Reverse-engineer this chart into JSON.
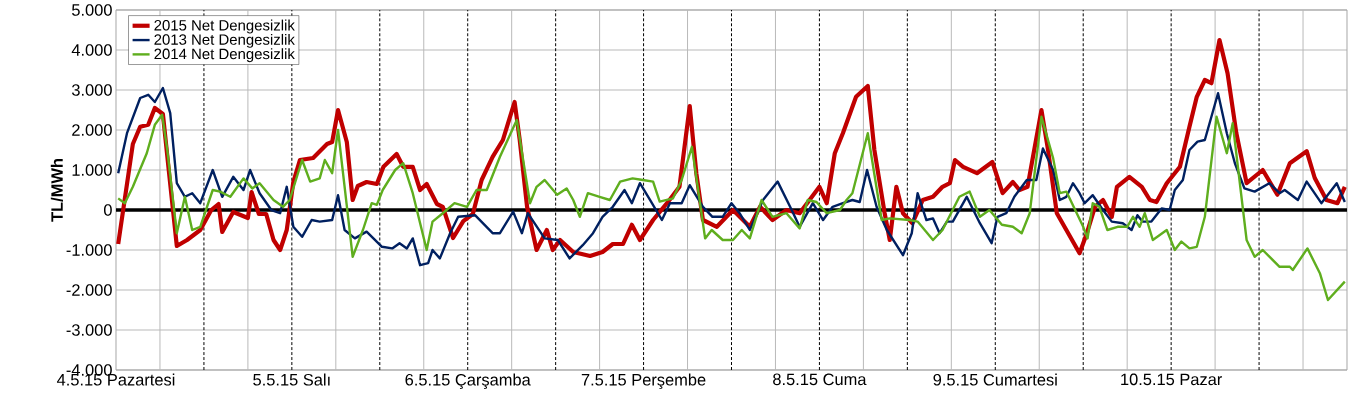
{
  "chart_data": {
    "type": "line",
    "ylabel": "TL/MWh",
    "xlim": [
      "2015-05-04T00:00",
      "2015-05-11T00:00"
    ],
    "ylim": [
      -4000,
      5000
    ],
    "xticks": [
      {
        "value": "2015-05-04T00:00",
        "label": "4.5.15 Pazartesi"
      },
      {
        "value": "2015-05-04T06:00",
        "label": null
      },
      {
        "value": "2015-05-04T12:00",
        "label": null
      },
      {
        "value": "2015-05-04T18:00",
        "label": null
      },
      {
        "value": "2015-05-05T00:00",
        "label": "5.5.15 Salı"
      },
      {
        "value": "2015-05-05T06:00",
        "label": null
      },
      {
        "value": "2015-05-05T12:00",
        "label": null
      },
      {
        "value": "2015-05-05T18:00",
        "label": null
      },
      {
        "value": "2015-05-06T00:00",
        "label": "6.5.15 Çarşamba"
      },
      {
        "value": "2015-05-06T06:00",
        "label": null
      },
      {
        "value": "2015-05-06T12:00",
        "label": null
      },
      {
        "value": "2015-05-06T18:00",
        "label": null
      },
      {
        "value": "2015-05-07T00:00",
        "label": "7.5.15 Perşembe"
      },
      {
        "value": "2015-05-07T06:00",
        "label": null
      },
      {
        "value": "2015-05-07T12:00",
        "label": null
      },
      {
        "value": "2015-05-07T18:00",
        "label": null
      },
      {
        "value": "2015-05-08T00:00",
        "label": "8.5.15 Cuma"
      },
      {
        "value": "2015-05-08T06:00",
        "label": null
      },
      {
        "value": "2015-05-08T12:00",
        "label": null
      },
      {
        "value": "2015-05-08T18:00",
        "label": null
      },
      {
        "value": "2015-05-09T00:00",
        "label": "9.5.15 Cumartesi"
      },
      {
        "value": "2015-05-09T06:00",
        "label": null
      },
      {
        "value": "2015-05-09T12:00",
        "label": null
      },
      {
        "value": "2015-05-09T18:00",
        "label": null
      },
      {
        "value": "2015-05-10T00:00",
        "label": "10.5.15 Pazar"
      },
      {
        "value": "2015-05-10T06:00",
        "label": null
      },
      {
        "value": "2015-05-10T12:00",
        "label": null
      },
      {
        "value": "2015-05-10T18:00",
        "label": null
      },
      {
        "value": "2015-05-11T00:00",
        "label": null
      }
    ],
    "yticks": [
      {
        "value": -4000,
        "label": "-4.000"
      },
      {
        "value": -3000,
        "label": "-3.000"
      },
      {
        "value": -2000,
        "label": "-2.000"
      },
      {
        "value": -1000,
        "label": "-1.000"
      },
      0,
      {
        "value": 1000,
        "label": "1.000"
      },
      {
        "value": 2000,
        "label": "2.000"
      },
      {
        "value": 3000,
        "label": "3.000"
      },
      {
        "value": 4000,
        "label": "4.000"
      },
      {
        "value": 5000,
        "label": "5.000"
      }
    ],
    "grid": true,
    "legend": "top left",
    "ref_lines": [
      {
        "axis": "y",
        "value": 0,
        "color": "#000000",
        "line_style": "solid"
      }
    ],
    "series": [
      {
        "name": "2015  Net Dengesizlik",
        "color": "#c00000",
        "x": [
          "2015-05-04T00:18",
          "2015-05-04T02:18",
          "2015-05-04T03:18",
          "2015-05-04T04:24",
          "2015-05-04T05:18",
          "2015-05-04T06:24",
          "2015-05-04T07:12",
          "2015-05-04T08:18",
          "2015-05-04T09:42",
          "2015-05-04T11:30",
          "2015-05-04T13:00",
          "2015-05-04T14:00",
          "2015-05-04T14:30",
          "2015-05-04T16:00",
          "2015-05-04T18:00",
          "2015-05-04T18:30",
          "2015-05-04T19:30",
          "2015-05-04T20:30",
          "2015-05-04T21:30",
          "2015-05-04T22:24",
          "2015-05-04T23:18",
          "2015-05-05T00:12",
          "2015-05-05T01:06",
          "2015-05-05T02:54",
          "2015-05-05T04:48",
          "2015-05-05T05:30",
          "2015-05-05T06:18",
          "2015-05-05T07:30",
          "2015-05-05T08:18",
          "2015-05-05T09:00",
          "2015-05-05T10:12",
          "2015-05-05T11:36",
          "2015-05-05T12:30",
          "2015-05-05T14:18",
          "2015-05-05T15:12",
          "2015-05-05T16:30",
          "2015-05-05T17:30",
          "2015-05-05T18:24",
          "2015-05-05T19:48",
          "2015-05-05T20:36",
          "2015-05-05T22:00",
          "2015-05-05T23:24",
          "2015-05-06T00:42",
          "2015-05-06T01:54",
          "2015-05-06T03:24",
          "2015-05-06T04:48",
          "2015-05-06T06:24",
          "2015-05-06T07:06",
          "2015-05-06T08:06",
          "2015-05-06T09:24",
          "2015-05-06T10:48",
          "2015-05-06T11:36",
          "2015-05-06T12:36",
          "2015-05-06T14:24",
          "2015-05-06T16:42",
          "2015-05-06T18:24",
          "2015-05-06T19:48",
          "2015-05-06T21:12",
          "2015-05-06T22:24",
          "2015-05-06T23:30",
          "2015-05-07T01:18",
          "2015-05-07T03:12",
          "2015-05-07T04:54",
          "2015-05-07T06:18",
          "2015-05-07T07:12",
          "2015-05-07T08:06",
          "2015-05-07T10:00",
          "2015-05-07T12:12",
          "2015-05-07T14:30",
          "2015-05-07T15:54",
          "2015-05-07T17:36",
          "2015-05-07T19:30",
          "2015-05-07T21:18",
          "2015-05-08T00:00",
          "2015-05-08T01:00",
          "2015-05-08T02:06",
          "2015-05-08T03:12",
          "2015-05-08T05:00",
          "2015-05-08T06:36",
          "2015-05-08T07:30",
          "2015-05-08T08:54",
          "2015-05-08T09:36",
          "2015-05-08T10:30",
          "2015-05-08T11:24",
          "2015-05-08T12:42",
          "2015-05-08T14:06",
          "2015-05-08T15:30",
          "2015-05-08T16:48",
          "2015-05-08T17:48",
          "2015-05-08T18:30",
          "2015-05-08T19:36",
          "2015-05-08T21:30",
          "2015-05-08T23:36",
          "2015-05-09T01:00",
          "2015-05-09T02:24",
          "2015-05-09T03:18",
          "2015-05-09T04:24",
          "2015-05-09T06:18",
          "2015-05-09T07:12",
          "2015-05-09T08:24",
          "2015-05-09T09:42",
          "2015-05-09T11:30",
          "2015-05-09T12:30",
          "2015-05-09T13:36",
          "2015-05-09T14:42",
          "2015-05-09T15:54",
          "2015-05-09T16:36",
          "2015-05-09T18:18",
          "2015-05-09T20:00",
          "2015-05-09T21:06",
          "2015-05-09T22:00",
          "2015-05-09T23:24",
          "2015-05-10T01:12",
          "2015-05-10T02:30",
          "2015-05-10T03:30",
          "2015-05-10T04:36",
          "2015-05-10T05:30",
          "2015-05-10T06:36",
          "2015-05-10T07:42",
          "2015-05-10T08:54",
          "2015-05-10T10:18",
          "2015-05-10T12:30",
          "2015-05-10T14:30",
          "2015-05-10T16:12",
          "2015-05-10T18:30",
          "2015-05-10T19:36",
          "2015-05-10T21:12",
          "2015-05-10T22:42",
          "2015-05-10T23:42"
        ],
        "values": [
          -850,
          1650,
          2080,
          2130,
          2550,
          2400,
          1000,
          -900,
          -750,
          -500,
          0,
          150,
          -550,
          -50,
          -200,
          450,
          -100,
          -100,
          -750,
          -1000,
          -500,
          700,
          1250,
          1300,
          1650,
          1700,
          2500,
          1700,
          250,
          600,
          700,
          650,
          1080,
          1400,
          1080,
          1080,
          500,
          650,
          150,
          80,
          -700,
          -280,
          -100,
          750,
          1330,
          1750,
          2700,
          1750,
          80,
          -1000,
          -500,
          -1000,
          -750,
          -1050,
          -1150,
          -1050,
          -850,
          -850,
          -370,
          -750,
          -250,
          170,
          580,
          2600,
          920,
          -250,
          -420,
          0,
          -420,
          80,
          -250,
          0,
          -80,
          580,
          170,
          1420,
          1920,
          2830,
          3100,
          1500,
          -80,
          -750,
          580,
          -80,
          -330,
          250,
          330,
          580,
          670,
          1250,
          1080,
          920,
          1200,
          420,
          700,
          500,
          580,
          2500,
          1500,
          -80,
          -500,
          -1080,
          -580,
          80,
          250,
          -170,
          580,
          830,
          580,
          250,
          200,
          670,
          1080,
          2080,
          2830,
          3250,
          3170,
          4250,
          3420,
          1920,
          670,
          1000,
          380,
          1170,
          1470,
          800,
          250,
          170,
          580
        ]
      },
      {
        "name": "2013  Net Dengesizlik",
        "color": "#002060",
        "x": [
          "2015-05-04T00:18",
          "2015-05-04T01:30",
          "2015-05-04T03:18",
          "2015-05-04T04:24",
          "2015-05-04T05:18",
          "2015-05-04T06:24",
          "2015-05-04T07:24",
          "2015-05-04T08:18",
          "2015-05-04T09:24",
          "2015-05-04T10:24",
          "2015-05-04T11:30",
          "2015-05-04T13:12",
          "2015-05-04T14:30",
          "2015-05-04T16:00",
          "2015-05-04T17:24",
          "2015-05-04T18:18",
          "2015-05-04T19:36",
          "2015-05-04T21:12",
          "2015-05-04T22:24",
          "2015-05-04T23:18",
          "2015-05-05T00:12",
          "2015-05-05T01:24",
          "2015-05-05T02:42",
          "2015-05-05T03:48",
          "2015-05-05T05:30",
          "2015-05-05T06:18",
          "2015-05-05T07:12",
          "2015-05-05T08:36",
          "2015-05-05T10:12",
          "2015-05-05T12:18",
          "2015-05-05T13:42",
          "2015-05-05T14:42",
          "2015-05-05T15:42",
          "2015-05-05T16:30",
          "2015-05-05T17:30",
          "2015-05-05T18:36",
          "2015-05-05T19:12",
          "2015-05-05T20:12",
          "2015-05-05T21:36",
          "2015-05-05T22:42",
          "2015-05-06T01:00",
          "2015-05-06T03:24",
          "2015-05-06T04:24",
          "2015-05-06T06:12",
          "2015-05-06T07:24",
          "2015-05-06T08:12",
          "2015-05-06T10:30",
          "2015-05-06T12:18",
          "2015-05-06T13:54",
          "2015-05-06T15:42",
          "2015-05-06T17:06",
          "2015-05-06T18:24",
          "2015-05-06T19:48",
          "2015-05-06T21:24",
          "2015-05-06T22:24",
          "2015-05-06T23:30",
          "2015-05-07T00:54",
          "2015-05-07T02:30",
          "2015-05-07T03:36",
          "2015-05-07T05:12",
          "2015-05-07T06:18",
          "2015-05-07T08:06",
          "2015-05-07T09:24",
          "2015-05-07T10:48",
          "2015-05-07T12:00",
          "2015-05-07T13:06",
          "2015-05-07T14:30",
          "2015-05-07T16:18",
          "2015-05-07T18:18",
          "2015-05-07T20:00",
          "2015-05-07T21:18",
          "2015-05-07T23:06",
          "2015-05-08T00:30",
          "2015-05-08T01:48",
          "2015-05-08T03:12",
          "2015-05-08T04:30",
          "2015-05-08T05:30",
          "2015-05-08T06:30",
          "2015-05-08T07:48",
          "2015-05-08T09:12",
          "2015-05-08T11:24",
          "2015-05-08T12:36",
          "2015-05-08T13:24",
          "2015-05-08T14:36",
          "2015-05-08T15:30",
          "2015-05-08T16:24",
          "2015-05-08T17:24",
          "2015-05-08T18:12",
          "2015-05-08T20:06",
          "2015-05-08T21:54",
          "2015-05-08T23:30",
          "2015-05-09T00:18",
          "2015-05-09T01:30",
          "2015-05-09T02:36",
          "2015-05-09T04:18",
          "2015-05-09T05:36",
          "2015-05-09T06:30",
          "2015-05-09T07:54",
          "2015-05-09T08:48",
          "2015-05-09T09:42",
          "2015-05-09T10:36",
          "2015-05-09T11:30",
          "2015-05-09T12:12",
          "2015-05-09T13:18",
          "2015-05-09T14:42",
          "2015-05-09T15:54",
          "2015-05-09T17:24",
          "2015-05-09T18:36",
          "2015-05-09T19:24",
          "2015-05-09T20:06",
          "2015-05-09T21:18",
          "2015-05-09T22:42",
          "2015-05-09T23:48",
          "2015-05-10T00:30",
          "2015-05-10T01:36",
          "2015-05-10T02:30",
          "2015-05-10T03:36",
          "2015-05-10T04:36",
          "2015-05-10T06:24",
          "2015-05-10T07:36",
          "2015-05-10T08:42",
          "2015-05-10T10:00",
          "2015-05-10T11:24",
          "2015-05-10T13:24",
          "2015-05-10T14:48",
          "2015-05-10T15:30",
          "2015-05-10T17:18",
          "2015-05-10T18:30",
          "2015-05-10T20:30",
          "2015-05-10T22:36",
          "2015-05-10T23:42"
        ],
        "values": [
          920,
          1920,
          2800,
          2880,
          2700,
          3050,
          2420,
          670,
          330,
          420,
          170,
          1000,
          330,
          830,
          500,
          1000,
          420,
          0,
          -80,
          580,
          -420,
          -670,
          -250,
          -290,
          -250,
          370,
          -500,
          -710,
          -540,
          -920,
          -960,
          -830,
          -960,
          -710,
          -1380,
          -1330,
          -1000,
          -1210,
          -580,
          -170,
          -130,
          -580,
          -580,
          -40,
          -580,
          -80,
          -710,
          -750,
          -1210,
          -880,
          -580,
          -170,
          80,
          500,
          170,
          670,
          250,
          -250,
          170,
          170,
          620,
          80,
          -170,
          -170,
          170,
          -80,
          -500,
          250,
          710,
          80,
          -420,
          170,
          -250,
          80,
          170,
          250,
          200,
          1000,
          80,
          -500,
          -1130,
          -580,
          420,
          -250,
          -210,
          -580,
          -290,
          -290,
          330,
          -330,
          -830,
          -170,
          -80,
          330,
          750,
          750,
          1540,
          1000,
          250,
          330,
          670,
          420,
          170,
          370,
          0,
          -290,
          -330,
          -500,
          -130,
          -290,
          -290,
          40,
          0,
          500,
          750,
          1500,
          1710,
          1750,
          2920,
          1920,
          1170,
          540,
          460,
          670,
          420,
          500,
          250,
          710,
          170,
          670,
          200
        ]
      },
      {
        "name": "2014  Net Dengesizlik",
        "color": "#5fae1e",
        "x": [
          "2015-05-04T00:18",
          "2015-05-04T01:12",
          "2015-05-04T02:18",
          "2015-05-04T04:12",
          "2015-05-04T05:18",
          "2015-05-04T06:18",
          "2015-05-04T07:00",
          "2015-05-04T08:18",
          "2015-05-04T09:24",
          "2015-05-04T10:24",
          "2015-05-04T11:30",
          "2015-05-04T13:12",
          "2015-05-04T14:12",
          "2015-05-04T15:36",
          "2015-05-04T17:24",
          "2015-05-04T18:36",
          "2015-05-04T19:36",
          "2015-05-04T21:30",
          "2015-05-04T22:48",
          "2015-05-04T23:42",
          "2015-05-05T01:24",
          "2015-05-05T02:30",
          "2015-05-05T03:48",
          "2015-05-05T04:30",
          "2015-05-05T05:30",
          "2015-05-05T06:18",
          "2015-05-05T07:12",
          "2015-05-05T08:18",
          "2015-05-05T09:42",
          "2015-05-05T10:54",
          "2015-05-05T11:36",
          "2015-05-05T12:24",
          "2015-05-05T14:06",
          "2015-05-05T15:12",
          "2015-05-05T16:30",
          "2015-05-05T18:24",
          "2015-05-05T19:12",
          "2015-05-05T20:36",
          "2015-05-05T22:12",
          "2015-05-05T23:54",
          "2015-05-06T01:12",
          "2015-05-06T02:36",
          "2015-05-06T04:24",
          "2015-05-06T06:42",
          "2015-05-06T08:30",
          "2015-05-06T09:24",
          "2015-05-06T10:30",
          "2015-05-06T12:12",
          "2015-05-06T13:30",
          "2015-05-06T14:24",
          "2015-05-06T15:18",
          "2015-05-06T16:24",
          "2015-05-06T18:00",
          "2015-05-06T19:24",
          "2015-05-06T20:48",
          "2015-05-06T22:30",
          "2015-05-06T23:54",
          "2015-05-07T01:18",
          "2015-05-07T02:12",
          "2015-05-07T04:00",
          "2015-05-07T05:12",
          "2015-05-07T06:36",
          "2015-05-07T08:24",
          "2015-05-07T09:18",
          "2015-05-07T10:48",
          "2015-05-07T12:12",
          "2015-05-07T13:24",
          "2015-05-07T14:30",
          "2015-05-07T16:06",
          "2015-05-07T17:36",
          "2015-05-07T19:30",
          "2015-05-07T21:18",
          "2015-05-07T22:24",
          "2015-05-07T23:36",
          "2015-05-08T01:00",
          "2015-05-08T02:48",
          "2015-05-08T03:42",
          "2015-05-08T04:30",
          "2015-05-08T06:36",
          "2015-05-08T08:30",
          "2015-05-08T09:36",
          "2015-05-08T12:18",
          "2015-05-08T13:24",
          "2015-05-08T15:30",
          "2015-05-08T16:48",
          "2015-05-08T19:06",
          "2015-05-08T20:30",
          "2015-05-08T21:54",
          "2015-05-08T23:12",
          "2015-05-09T00:54",
          "2015-05-09T02:24",
          "2015-05-09T03:36",
          "2015-05-09T04:42",
          "2015-05-09T06:18",
          "2015-05-09T07:54",
          "2015-05-09T08:48",
          "2015-05-09T09:42",
          "2015-05-09T12:00",
          "2015-05-09T12:36",
          "2015-05-09T13:18",
          "2015-05-09T14:12",
          "2015-05-09T15:18",
          "2015-05-09T16:42",
          "2015-05-09T18:00",
          "2015-05-09T18:48",
          "2015-05-09T19:42",
          "2015-05-09T20:24",
          "2015-05-09T21:30",
          "2015-05-09T23:24",
          "2015-05-10T00:30",
          "2015-05-10T01:24",
          "2015-05-10T02:30",
          "2015-05-10T03:30",
          "2015-05-10T04:36",
          "2015-05-10T06:12",
          "2015-05-10T07:36",
          "2015-05-10T08:24",
          "2015-05-10T10:18",
          "2015-05-10T11:24",
          "2015-05-10T12:30",
          "2015-05-10T14:48",
          "2015-05-10T16:12",
          "2015-05-10T16:36",
          "2015-05-10T18:36",
          "2015-05-10T20:18",
          "2015-05-10T21:24",
          "2015-05-10T23:42"
        ],
        "values": [
          290,
          170,
          580,
          1420,
          2130,
          2380,
          1500,
          -580,
          330,
          -500,
          -420,
          500,
          460,
          330,
          790,
          540,
          670,
          250,
          80,
          250,
          1250,
          710,
          790,
          1250,
          920,
          2000,
          580,
          -1170,
          -500,
          170,
          130,
          500,
          1000,
          1170,
          420,
          -1000,
          -290,
          -80,
          170,
          80,
          500,
          500,
          1330,
          2250,
          170,
          580,
          750,
          380,
          540,
          250,
          -170,
          420,
          330,
          250,
          710,
          790,
          750,
          710,
          210,
          290,
          750,
          1580,
          -710,
          -500,
          -750,
          -750,
          -500,
          -710,
          250,
          -170,
          -80,
          -460,
          250,
          200,
          -80,
          0,
          250,
          420,
          1920,
          -250,
          -210,
          -250,
          -290,
          -750,
          -500,
          330,
          460,
          -170,
          0,
          -370,
          -420,
          -580,
          -80,
          2330,
          1290,
          420,
          460,
          -420,
          -710,
          170,
          80,
          -500,
          -420,
          -420,
          -170,
          -420,
          -80,
          -750,
          -500,
          -1000,
          -790,
          -960,
          -920,
          -170,
          2330,
          1420,
          2170,
          -750,
          -1170,
          -1000,
          -1420,
          -1420,
          -1500,
          -960,
          -1580,
          -2250,
          -1790
        ]
      }
    ]
  }
}
